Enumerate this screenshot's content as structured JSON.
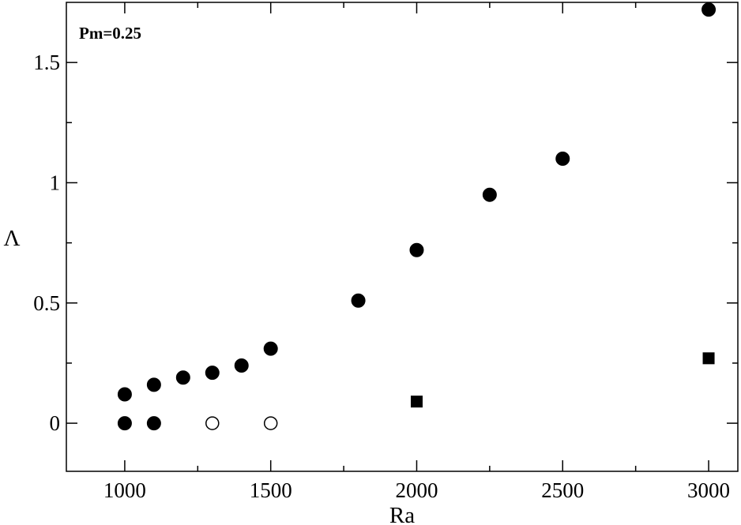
{
  "chart_data": {
    "type": "scatter",
    "xlabel": "Ra",
    "ylabel": "Λ",
    "xlim": [
      800,
      3100
    ],
    "ylim": [
      -0.2,
      1.75
    ],
    "x_ticks": [
      1000,
      1500,
      2000,
      2500,
      3000
    ],
    "x_tick_labels": [
      "1000",
      "1500",
      "2000",
      "2500",
      "3000"
    ],
    "y_ticks": [
      0,
      0.5,
      1,
      1.5
    ],
    "y_tick_labels": [
      "0",
      "0.5",
      "1",
      "1.5"
    ],
    "annotation": "Pm=0.25",
    "grid": false,
    "series": [
      {
        "marker": "filled-circle",
        "color": "#000000",
        "points": [
          {
            "x": 1000,
            "y": 0.12
          },
          {
            "x": 1100,
            "y": 0.16
          },
          {
            "x": 1200,
            "y": 0.19
          },
          {
            "x": 1300,
            "y": 0.21
          },
          {
            "x": 1400,
            "y": 0.24
          },
          {
            "x": 1500,
            "y": 0.31
          },
          {
            "x": 1800,
            "y": 0.51
          },
          {
            "x": 2000,
            "y": 0.72
          },
          {
            "x": 2250,
            "y": 0.95
          },
          {
            "x": 2500,
            "y": 1.1
          },
          {
            "x": 3000,
            "y": 1.72
          },
          {
            "x": 1000,
            "y": 0.0
          },
          {
            "x": 1100,
            "y": 0.0
          }
        ]
      },
      {
        "marker": "open-circle",
        "color": "#000000",
        "points": [
          {
            "x": 1300,
            "y": 0.0
          },
          {
            "x": 1500,
            "y": 0.0
          }
        ]
      },
      {
        "marker": "filled-square",
        "color": "#000000",
        "points": [
          {
            "x": 2000,
            "y": 0.09
          },
          {
            "x": 3000,
            "y": 0.27
          }
        ]
      }
    ]
  }
}
